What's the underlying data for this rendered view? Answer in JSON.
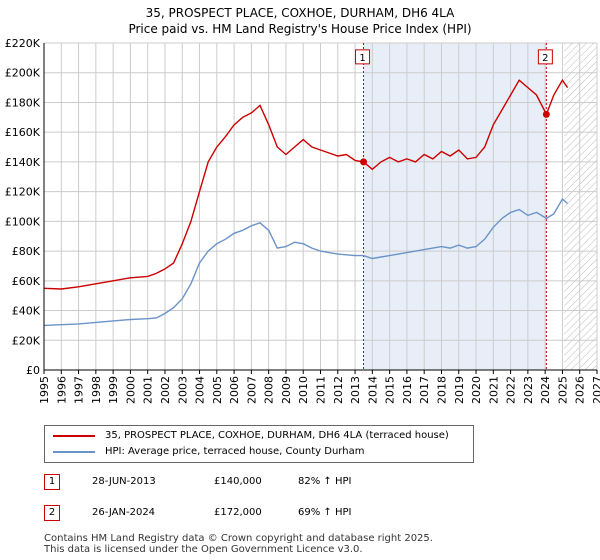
{
  "title_line1": "35, PROSPECT PLACE, COXHOE, DURHAM, DH6 4LA",
  "title_line2": "Price paid vs. HM Land Registry's House Price Index (HPI)",
  "legend": {
    "property": "35, PROSPECT PLACE, COXHOE, DURHAM, DH6 4LA (terraced house)",
    "hpi": "HPI: Average price, terraced house, County Durham"
  },
  "sales": [
    {
      "badge": "1",
      "date": "28-JUN-2013",
      "price": "£140,000",
      "hpi_change": "82% ↑ HPI"
    },
    {
      "badge": "2",
      "date": "26-JAN-2024",
      "price": "£172,000",
      "hpi_change": "69% ↑ HPI"
    }
  ],
  "footer_line1": "Contains HM Land Registry data © Crown copyright and database right 2025.",
  "footer_line2": "This data is licensed under the Open Government Licence v3.0.",
  "colors": {
    "property": "#cc0000",
    "hpi": "#6a93c8",
    "shade": "#e8eef8",
    "grid": "#cccccc"
  },
  "chart_data": {
    "type": "line",
    "title": "35, PROSPECT PLACE, COXHOE, DURHAM, DH6 4LA — Price paid vs. HM Land Registry's House Price Index (HPI)",
    "xlabel": "",
    "ylabel": "",
    "xlim": [
      1995,
      2027
    ],
    "ylim": [
      0,
      220000
    ],
    "x_ticks": [
      "1995",
      "1996",
      "1997",
      "1998",
      "1999",
      "2000",
      "2001",
      "2002",
      "2003",
      "2004",
      "2005",
      "2006",
      "2007",
      "2008",
      "2009",
      "2010",
      "2011",
      "2012",
      "2013",
      "2014",
      "2015",
      "2016",
      "2017",
      "2018",
      "2019",
      "2020",
      "2021",
      "2022",
      "2023",
      "2024",
      "2025",
      "2026",
      "2027"
    ],
    "y_ticks": [
      {
        "v": 0,
        "label": "£0"
      },
      {
        "v": 20000,
        "label": "£20K"
      },
      {
        "v": 40000,
        "label": "£40K"
      },
      {
        "v": 60000,
        "label": "£60K"
      },
      {
        "v": 80000,
        "label": "£80K"
      },
      {
        "v": 100000,
        "label": "£100K"
      },
      {
        "v": 120000,
        "label": "£120K"
      },
      {
        "v": 140000,
        "label": "£140K"
      },
      {
        "v": 160000,
        "label": "£160K"
      },
      {
        "v": 180000,
        "label": "£180K"
      },
      {
        "v": 200000,
        "label": "£200K"
      },
      {
        "v": 220000,
        "label": "£220K"
      }
    ],
    "shaded_range": [
      2013.49,
      2024.07
    ],
    "hatched_from": 2025.1,
    "sale_markers": [
      {
        "label": "1",
        "x": 2013.49,
        "y": 140000
      },
      {
        "label": "2",
        "x": 2024.07,
        "y": 172000
      }
    ],
    "series": [
      {
        "name": "35, PROSPECT PLACE, COXHOE, DURHAM, DH6 4LA (terraced house)",
        "x": [
          1995,
          1996,
          1997,
          1998,
          1999,
          2000,
          2001,
          2001.5,
          2002,
          2002.5,
          2003,
          2003.5,
          2004,
          2004.5,
          2005,
          2005.5,
          2006,
          2006.5,
          2007,
          2007.5,
          2008,
          2008.5,
          2009,
          2009.5,
          2010,
          2010.5,
          2011,
          2011.5,
          2012,
          2012.5,
          2013,
          2013.49,
          2014,
          2014.5,
          2015,
          2015.5,
          2016,
          2016.5,
          2017,
          2017.5,
          2018,
          2018.5,
          2019,
          2019.5,
          2020,
          2020.5,
          2021,
          2021.5,
          2022,
          2022.5,
          2023,
          2023.5,
          2024.07,
          2024.5,
          2025,
          2025.3
        ],
        "values": [
          55000,
          54500,
          56000,
          58000,
          60000,
          62000,
          63000,
          65000,
          68000,
          72000,
          85000,
          100000,
          120000,
          140000,
          150000,
          157000,
          165000,
          170000,
          173000,
          178000,
          165000,
          150000,
          145000,
          150000,
          155000,
          150000,
          148000,
          146000,
          144000,
          145000,
          141000,
          140000,
          135000,
          140000,
          143000,
          140000,
          142000,
          140000,
          145000,
          142000,
          147000,
          144000,
          148000,
          142000,
          143000,
          150000,
          165000,
          175000,
          185000,
          195000,
          190000,
          185000,
          172000,
          185000,
          195000,
          190000
        ]
      },
      {
        "name": "HPI: Average price, terraced house, County Durham",
        "x": [
          1995,
          1996,
          1997,
          1998,
          1999,
          2000,
          2001,
          2001.5,
          2002,
          2002.5,
          2003,
          2003.5,
          2004,
          2004.5,
          2005,
          2005.5,
          2006,
          2006.5,
          2007,
          2007.5,
          2008,
          2008.5,
          2009,
          2009.5,
          2010,
          2010.5,
          2011,
          2011.5,
          2012,
          2012.5,
          2013,
          2013.49,
          2014,
          2014.5,
          2015,
          2015.5,
          2016,
          2016.5,
          2017,
          2017.5,
          2018,
          2018.5,
          2019,
          2019.5,
          2020,
          2020.5,
          2021,
          2021.5,
          2022,
          2022.5,
          2023,
          2023.5,
          2024.07,
          2024.5,
          2025,
          2025.3
        ],
        "values": [
          30000,
          30500,
          31000,
          32000,
          33000,
          34000,
          34500,
          35000,
          38000,
          42000,
          48000,
          58000,
          72000,
          80000,
          85000,
          88000,
          92000,
          94000,
          97000,
          99000,
          94000,
          82000,
          83000,
          86000,
          85000,
          82000,
          80000,
          79000,
          78000,
          77500,
          77000,
          77000,
          75000,
          76000,
          77000,
          78000,
          79000,
          80000,
          81000,
          82000,
          83000,
          82000,
          84000,
          82000,
          83000,
          88000,
          96000,
          102000,
          106000,
          108000,
          104000,
          106000,
          102000,
          105000,
          115000,
          112000
        ]
      }
    ]
  }
}
